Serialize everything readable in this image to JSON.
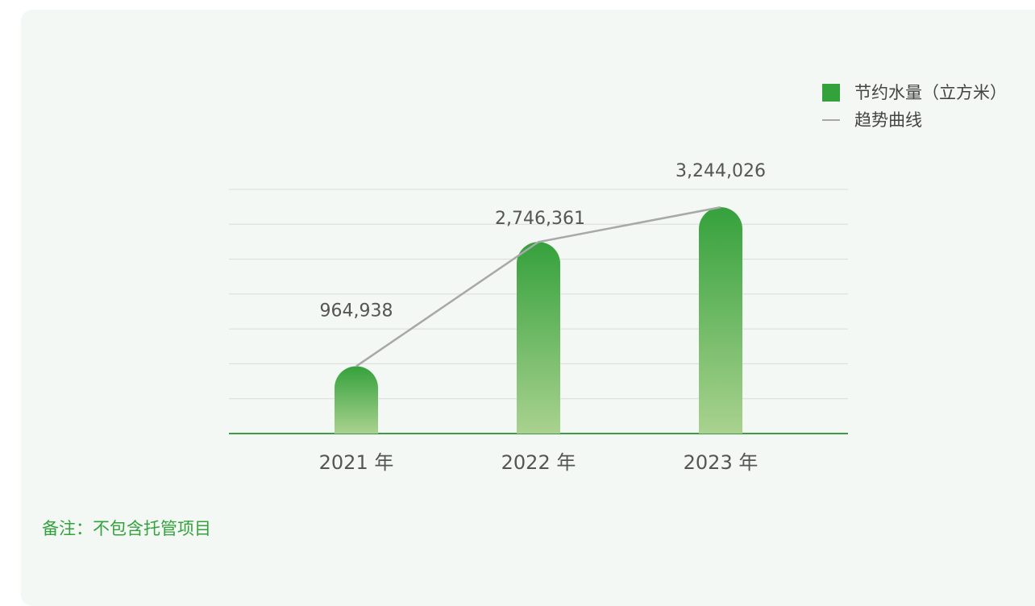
{
  "legend": {
    "bar_label": "节约水量（立方米）",
    "line_label": "趋势曲线"
  },
  "note": "备注：不包含托管项目",
  "colors": {
    "bar_top": "#35a13c",
    "bar_bottom": "#a9d28f",
    "trend_line": "#a8a8a8",
    "axis": "#3d9c45",
    "grid": "#d9dcd9",
    "note": "#33a23d",
    "background": "#f3f8f4"
  },
  "chart_data": {
    "type": "bar",
    "categories": [
      "2021 年",
      "2022 年",
      "2023 年"
    ],
    "series": [
      {
        "name": "节约水量（立方米）",
        "values": [
          964938,
          2746361,
          3244026
        ],
        "labels": [
          "964,938",
          "2,746,361",
          "3,244,026"
        ]
      }
    ],
    "trend": {
      "name": "趋势曲线",
      "values": [
        964938,
        2746361,
        3244026
      ]
    },
    "ylim": [
      0,
      3500000
    ],
    "grid": true,
    "legend_position": "top-right"
  }
}
